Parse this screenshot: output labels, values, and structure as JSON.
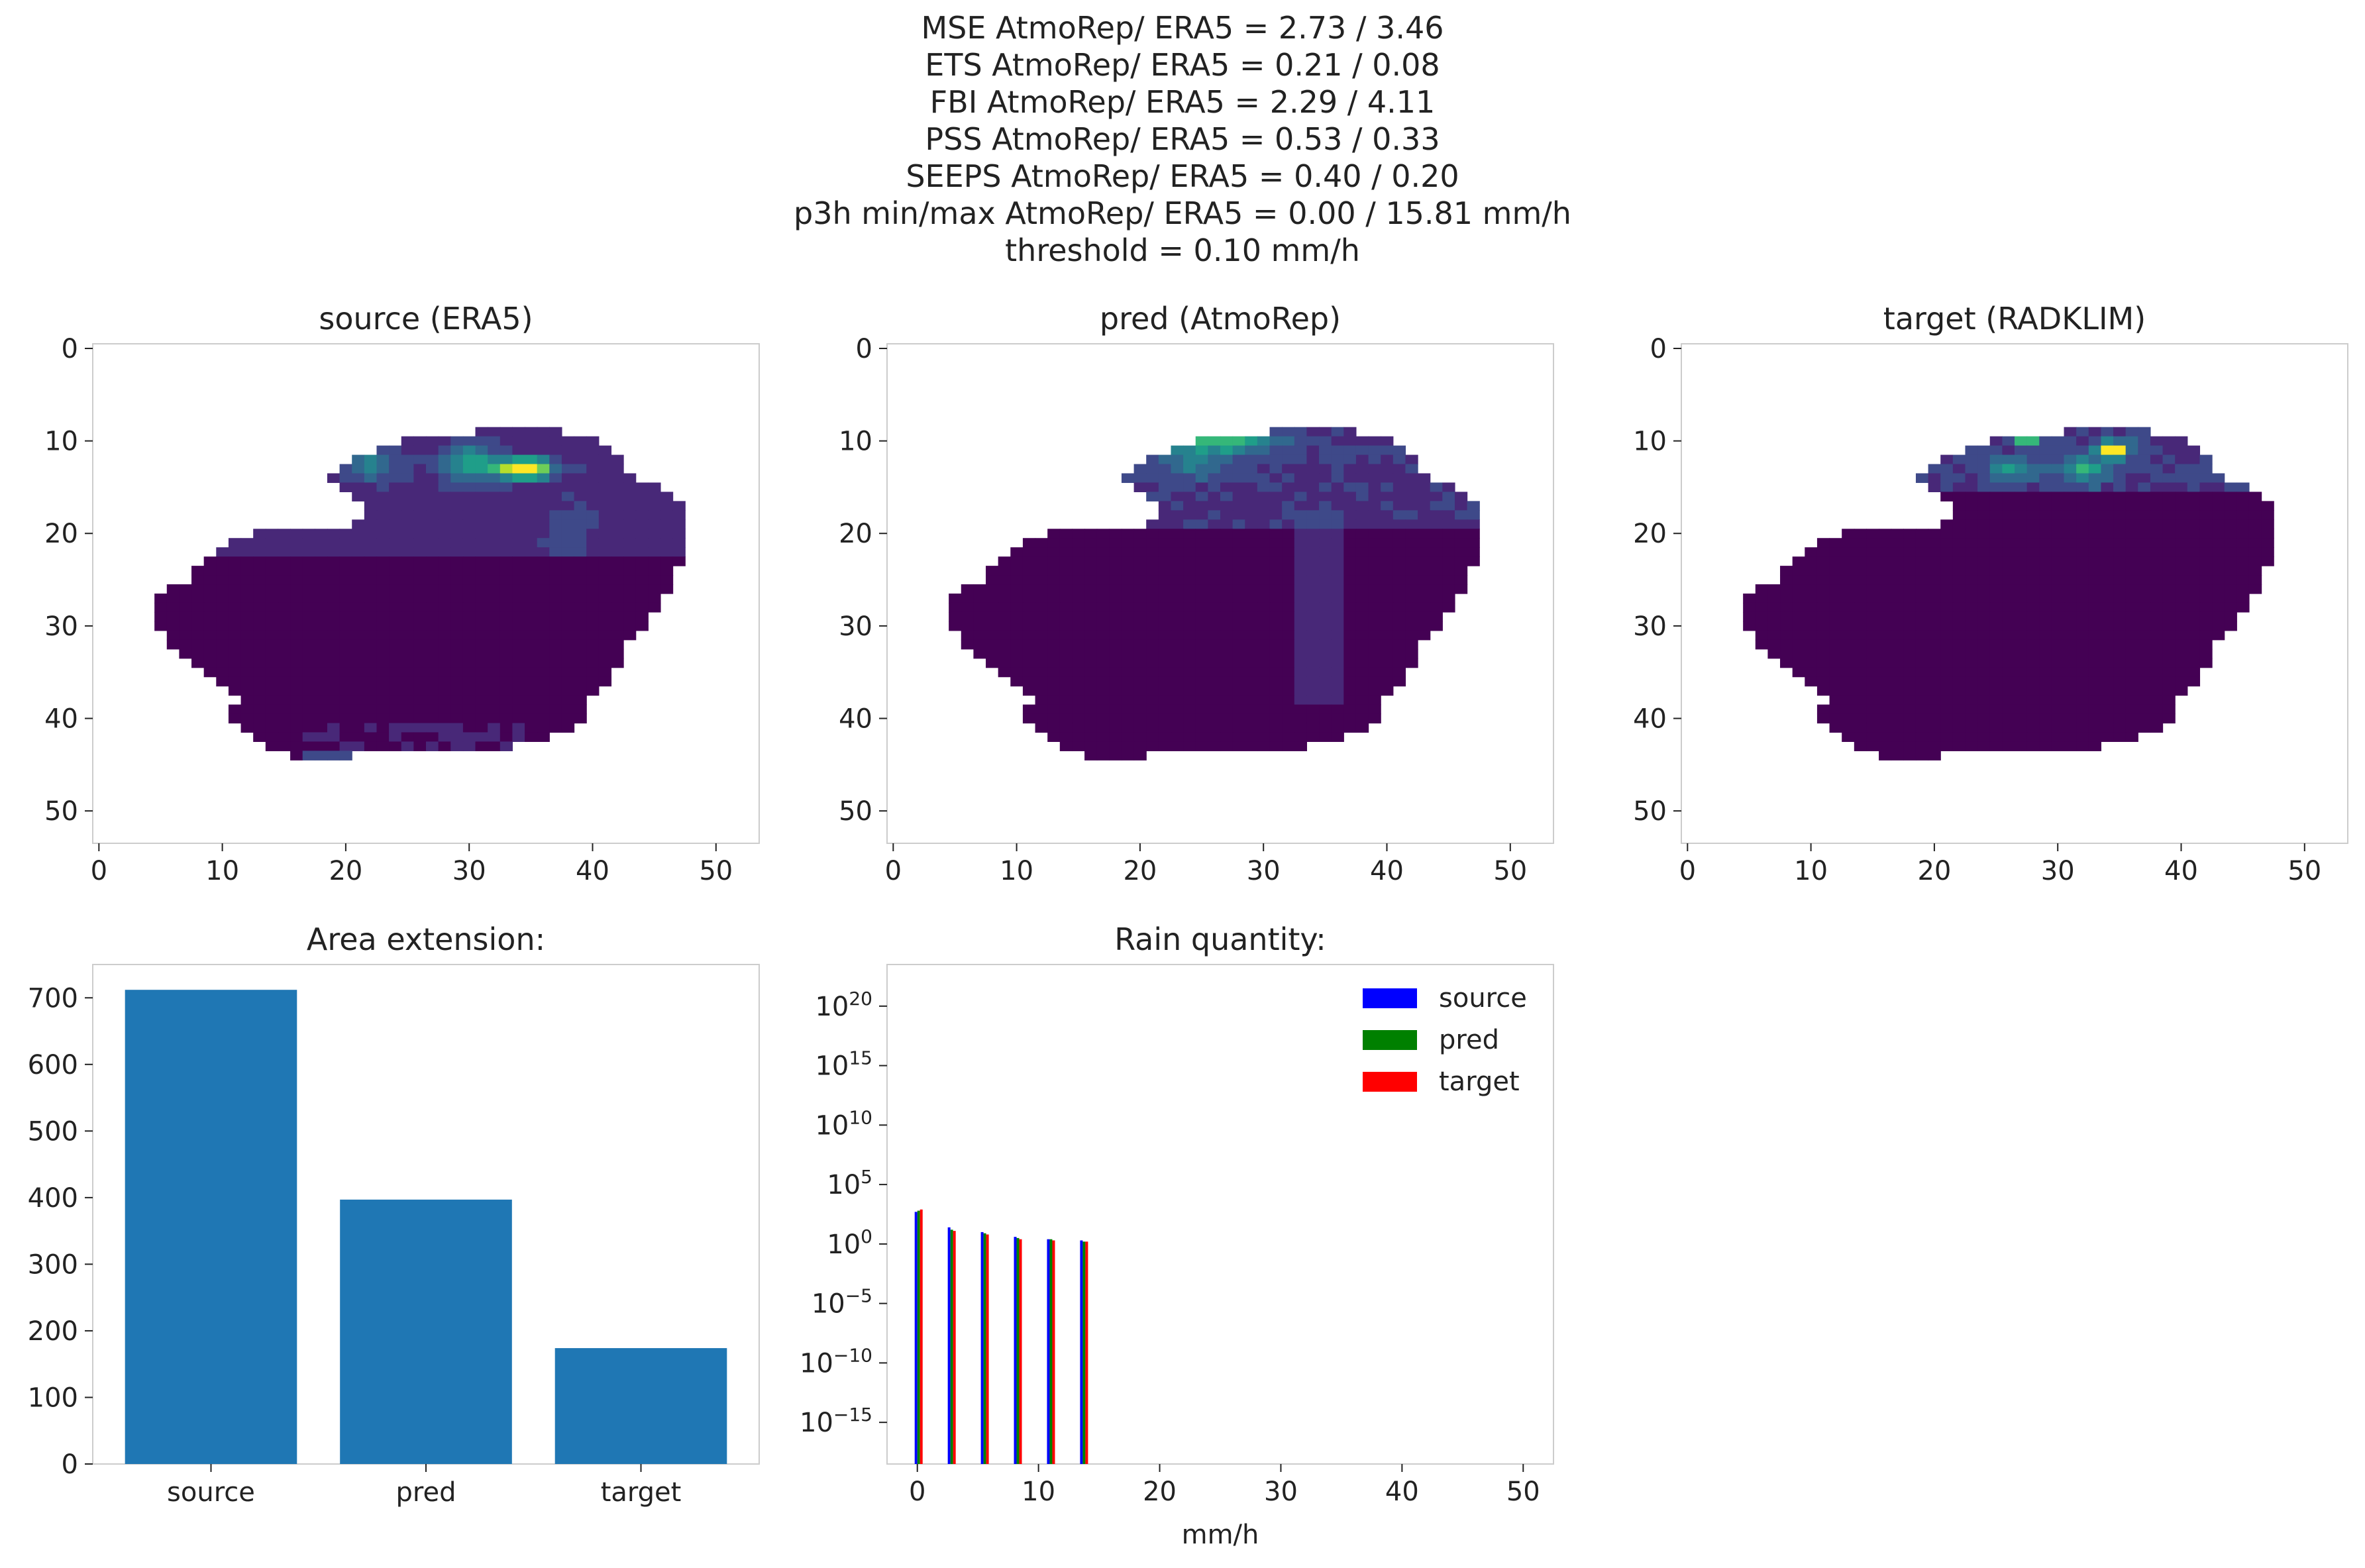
{
  "suptitle": {
    "lines": [
      "MSE AtmoRep/ ERA5 = 2.73 / 3.46",
      "ETS AtmoRep/ ERA5 = 0.21 / 0.08",
      "FBI AtmoRep/ ERA5 = 2.29 / 4.11",
      "PSS AtmoRep/ ERA5 = 0.53 / 0.33",
      "SEEPS AtmoRep/ ERA5 = 0.40 / 0.20",
      "p3h min/max AtmoRep/ ERA5 = 0.00 / 15.81 mm/h",
      "threshold = 0.10 mm/h"
    ]
  },
  "colors": {
    "background": "#440154",
    "viridis": [
      "#440154",
      "#482878",
      "#3e4989",
      "#31688e",
      "#26828e",
      "#1f9e89",
      "#35b779",
      "#6ece58",
      "#b5de2b",
      "#fde725"
    ],
    "bar": "#1f77b4",
    "source": "#0000ff",
    "pred": "#008000",
    "target": "#ff0000",
    "axis": "#cccccc"
  },
  "chart_data": [
    {
      "type": "heatmap",
      "title": "source (ERA5)",
      "x_ticks": [
        "0",
        "10",
        "20",
        "30",
        "40",
        "50"
      ],
      "y_ticks": [
        "0",
        "10",
        "20",
        "30",
        "40",
        "50"
      ],
      "xlim": [
        0,
        53
      ],
      "ylim": [
        53,
        0
      ],
      "precip_feature": {
        "rows": [
          9,
          22
        ],
        "cols": [
          17,
          42
        ],
        "max_at": [
          13,
          34
        ]
      },
      "grid": false
    },
    {
      "type": "heatmap",
      "title": "pred (AtmoRep)",
      "x_ticks": [
        "0",
        "10",
        "20",
        "30",
        "40",
        "50"
      ],
      "y_ticks": [
        "0",
        "10",
        "20",
        "30",
        "40",
        "50"
      ],
      "xlim": [
        0,
        53
      ],
      "ylim": [
        53,
        0
      ],
      "precip_feature": {
        "rows": [
          9,
          18
        ],
        "cols": [
          18,
          45
        ],
        "max_at": [
          10,
          22
        ]
      },
      "grid": false
    },
    {
      "type": "heatmap",
      "title": "target (RADKLIM)",
      "x_ticks": [
        "0",
        "10",
        "20",
        "30",
        "40",
        "50"
      ],
      "y_ticks": [
        "0",
        "10",
        "20",
        "30",
        "40",
        "50"
      ],
      "xlim": [
        0,
        53
      ],
      "ylim": [
        53,
        0
      ],
      "precip_feature": {
        "rows": [
          9,
          15
        ],
        "cols": [
          19,
          41
        ],
        "max_at": [
          12,
          34
        ]
      },
      "grid": false
    },
    {
      "type": "bar",
      "title": "Area extension:",
      "categories": [
        "source",
        "pred",
        "target"
      ],
      "values": [
        712,
        397,
        174
      ],
      "ylim": [
        0,
        750
      ],
      "y_ticks": [
        0,
        100,
        200,
        300,
        400,
        500,
        600,
        700
      ],
      "grid": false
    },
    {
      "type": "bar",
      "title": "Rain quantity:",
      "xlabel": "mm/h",
      "log_y": true,
      "ylim_exp": [
        -18.5,
        23.5
      ],
      "y_ticks_exp": [
        -15,
        -10,
        -5,
        0,
        5,
        10,
        15,
        20
      ],
      "xlim": [
        -2.5,
        52.5
      ],
      "x_ticks": [
        0,
        10,
        20,
        30,
        40,
        50
      ],
      "bin_edges": [
        0,
        2.73,
        5.46,
        8.19,
        10.92,
        13.65
      ],
      "series": [
        {
          "name": "source",
          "exponents": [
            2.7,
            1.4,
            1.0,
            0.6,
            0.4,
            0.3
          ]
        },
        {
          "name": "pred",
          "exponents": [
            2.8,
            1.2,
            0.9,
            0.5,
            0.4,
            0.2
          ]
        },
        {
          "name": "target",
          "exponents": [
            2.9,
            1.1,
            0.8,
            0.4,
            0.3,
            0.2
          ]
        }
      ],
      "legend": "top-right",
      "grid": false
    }
  ]
}
